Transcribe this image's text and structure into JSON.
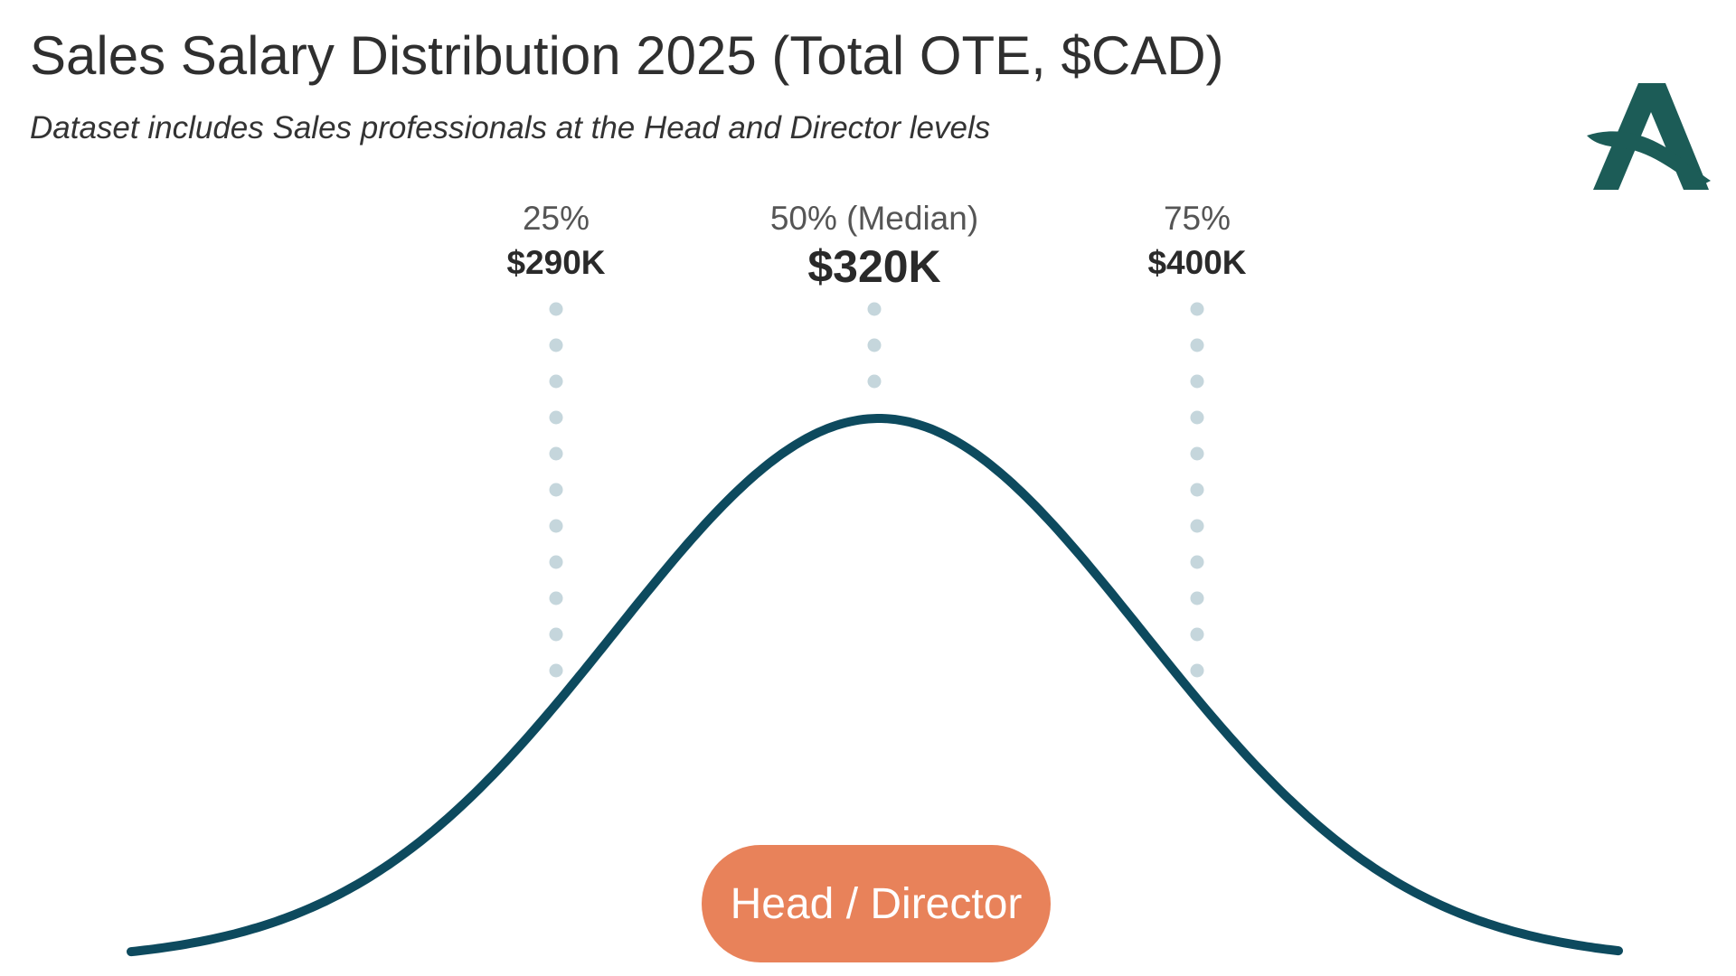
{
  "title": "Sales Salary Distribution 2025 (Total OTE, $CAD)",
  "subtitle": "Dataset includes Sales professionals at the Head and Director levels",
  "markers": [
    {
      "label": "25%",
      "value": "$290K"
    },
    {
      "label": "50% (Median)",
      "value": "$320K"
    },
    {
      "label": "75%",
      "value": "$400K"
    }
  ],
  "badge": "Head / Director"
}
